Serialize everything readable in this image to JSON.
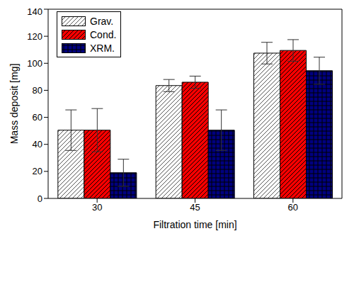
{
  "chart_data": {
    "type": "bar",
    "categories": [
      30,
      45,
      60
    ],
    "x_label": "Filtration time [min]",
    "y_label": "Mass deposit [mg]",
    "ylim": [
      0,
      140
    ],
    "yticks": [
      0,
      20,
      40,
      60,
      80,
      100,
      120,
      140
    ],
    "grid": false,
    "legend": "upper left",
    "series": [
      {
        "name": "Grav.",
        "color": "#ffffff",
        "values": [
          50.5,
          83.5,
          107.5
        ],
        "errors": [
          15,
          4.5,
          8
        ]
      },
      {
        "name": "Cond.",
        "color": "#ff0000",
        "values": [
          50.5,
          86,
          109.5
        ],
        "errors": [
          16,
          4.5,
          8
        ]
      },
      {
        "name": "XRM.",
        "color": "#000080",
        "values": [
          19,
          50.5,
          94.5
        ],
        "errors": [
          10,
          15,
          10
        ]
      }
    ]
  }
}
